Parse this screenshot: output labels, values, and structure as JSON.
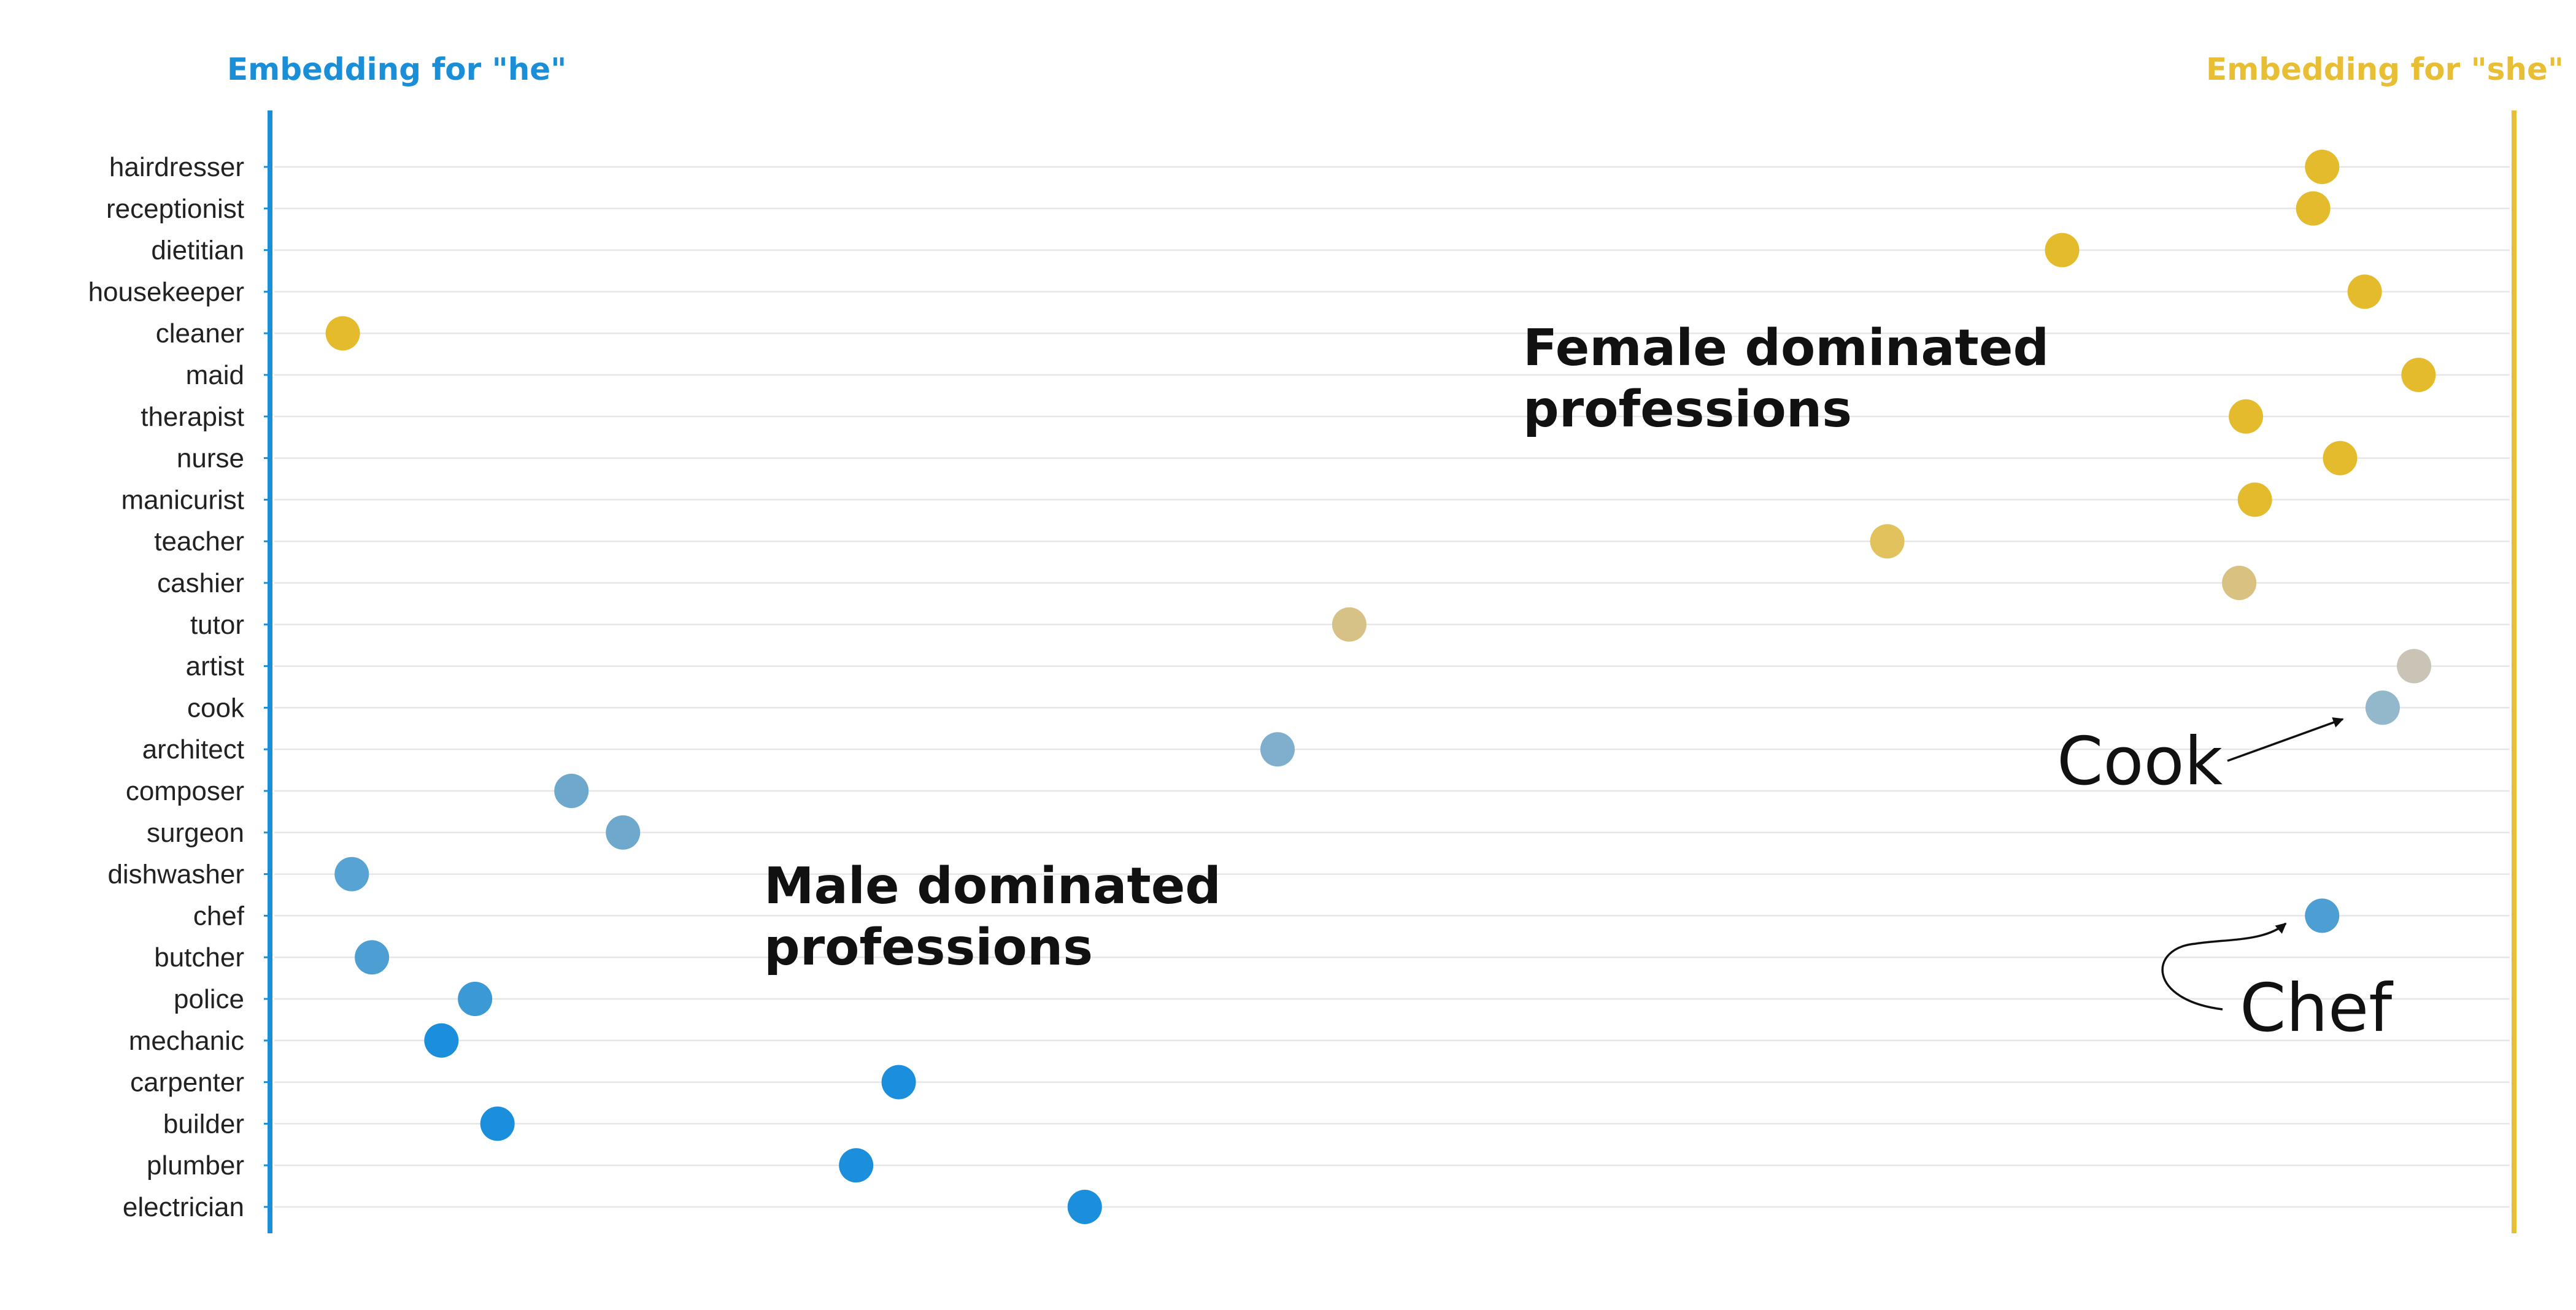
{
  "chart_data": {
    "type": "scatter",
    "title": "",
    "xlabel": "",
    "ylabel": "",
    "xlim": [
      0,
      1
    ],
    "grid": true,
    "legend": "none",
    "axis_left_label": "Embedding for \"he\"",
    "axis_right_label": "Embedding for \"she\"",
    "colors": {
      "he": "#1a8fd8",
      "she": "#e8bf34",
      "gridline": "#e6e6e6",
      "arrow": "#111111"
    },
    "professions": [
      {
        "label": "hairdresser",
        "value": 0.91,
        "color": "#e5bb2e"
      },
      {
        "label": "receptionist",
        "value": 0.906,
        "color": "#e5bb2e"
      },
      {
        "label": "dietitian",
        "value": 0.794,
        "color": "#e5bb2e"
      },
      {
        "label": "housekeeper",
        "value": 0.929,
        "color": "#e5bb2e"
      },
      {
        "label": "cleaner",
        "value": 0.027,
        "color": "#e5bb2e"
      },
      {
        "label": "maid",
        "value": 0.953,
        "color": "#e5bb2e"
      },
      {
        "label": "therapist",
        "value": 0.876,
        "color": "#e5bb2e"
      },
      {
        "label": "nurse",
        "value": 0.918,
        "color": "#e5bb2e"
      },
      {
        "label": "manicurist",
        "value": 0.88,
        "color": "#e5bb2e"
      },
      {
        "label": "teacher",
        "value": 0.716,
        "color": "#e1c25c"
      },
      {
        "label": "cashier",
        "value": 0.873,
        "color": "#d9c182"
      },
      {
        "label": "tutor",
        "value": 0.476,
        "color": "#d6c287"
      },
      {
        "label": "artist",
        "value": 0.951,
        "color": "#c9c4b6"
      },
      {
        "label": "cook",
        "value": 0.937,
        "color": "#93b7cb"
      },
      {
        "label": "architect",
        "value": 0.444,
        "color": "#7fafcc"
      },
      {
        "label": "composer",
        "value": 0.129,
        "color": "#6fa8cd"
      },
      {
        "label": "surgeon",
        "value": 0.152,
        "color": "#6fa8cd"
      },
      {
        "label": "dishwasher",
        "value": 0.031,
        "color": "#57a3d3"
      },
      {
        "label": "chef",
        "value": 0.91,
        "color": "#4d9fd3"
      },
      {
        "label": "butcher",
        "value": 0.04,
        "color": "#4d9fd3"
      },
      {
        "label": "police",
        "value": 0.086,
        "color": "#3b9ad6"
      },
      {
        "label": "mechanic",
        "value": 0.071,
        "color": "#1b8fdb"
      },
      {
        "label": "carpenter",
        "value": 0.275,
        "color": "#1b8fdb"
      },
      {
        "label": "builder",
        "value": 0.096,
        "color": "#1b8fdb"
      },
      {
        "label": "plumber",
        "value": 0.256,
        "color": "#1b8fdb"
      },
      {
        "label": "electrician",
        "value": 0.358,
        "color": "#1b8fdb"
      }
    ],
    "annotations": {
      "female_line1": "Female dominated",
      "female_line2": "professions",
      "male_line1": "Male dominated",
      "male_line2": "professions",
      "cook_callout": "Cook",
      "chef_callout": "Chef"
    }
  }
}
